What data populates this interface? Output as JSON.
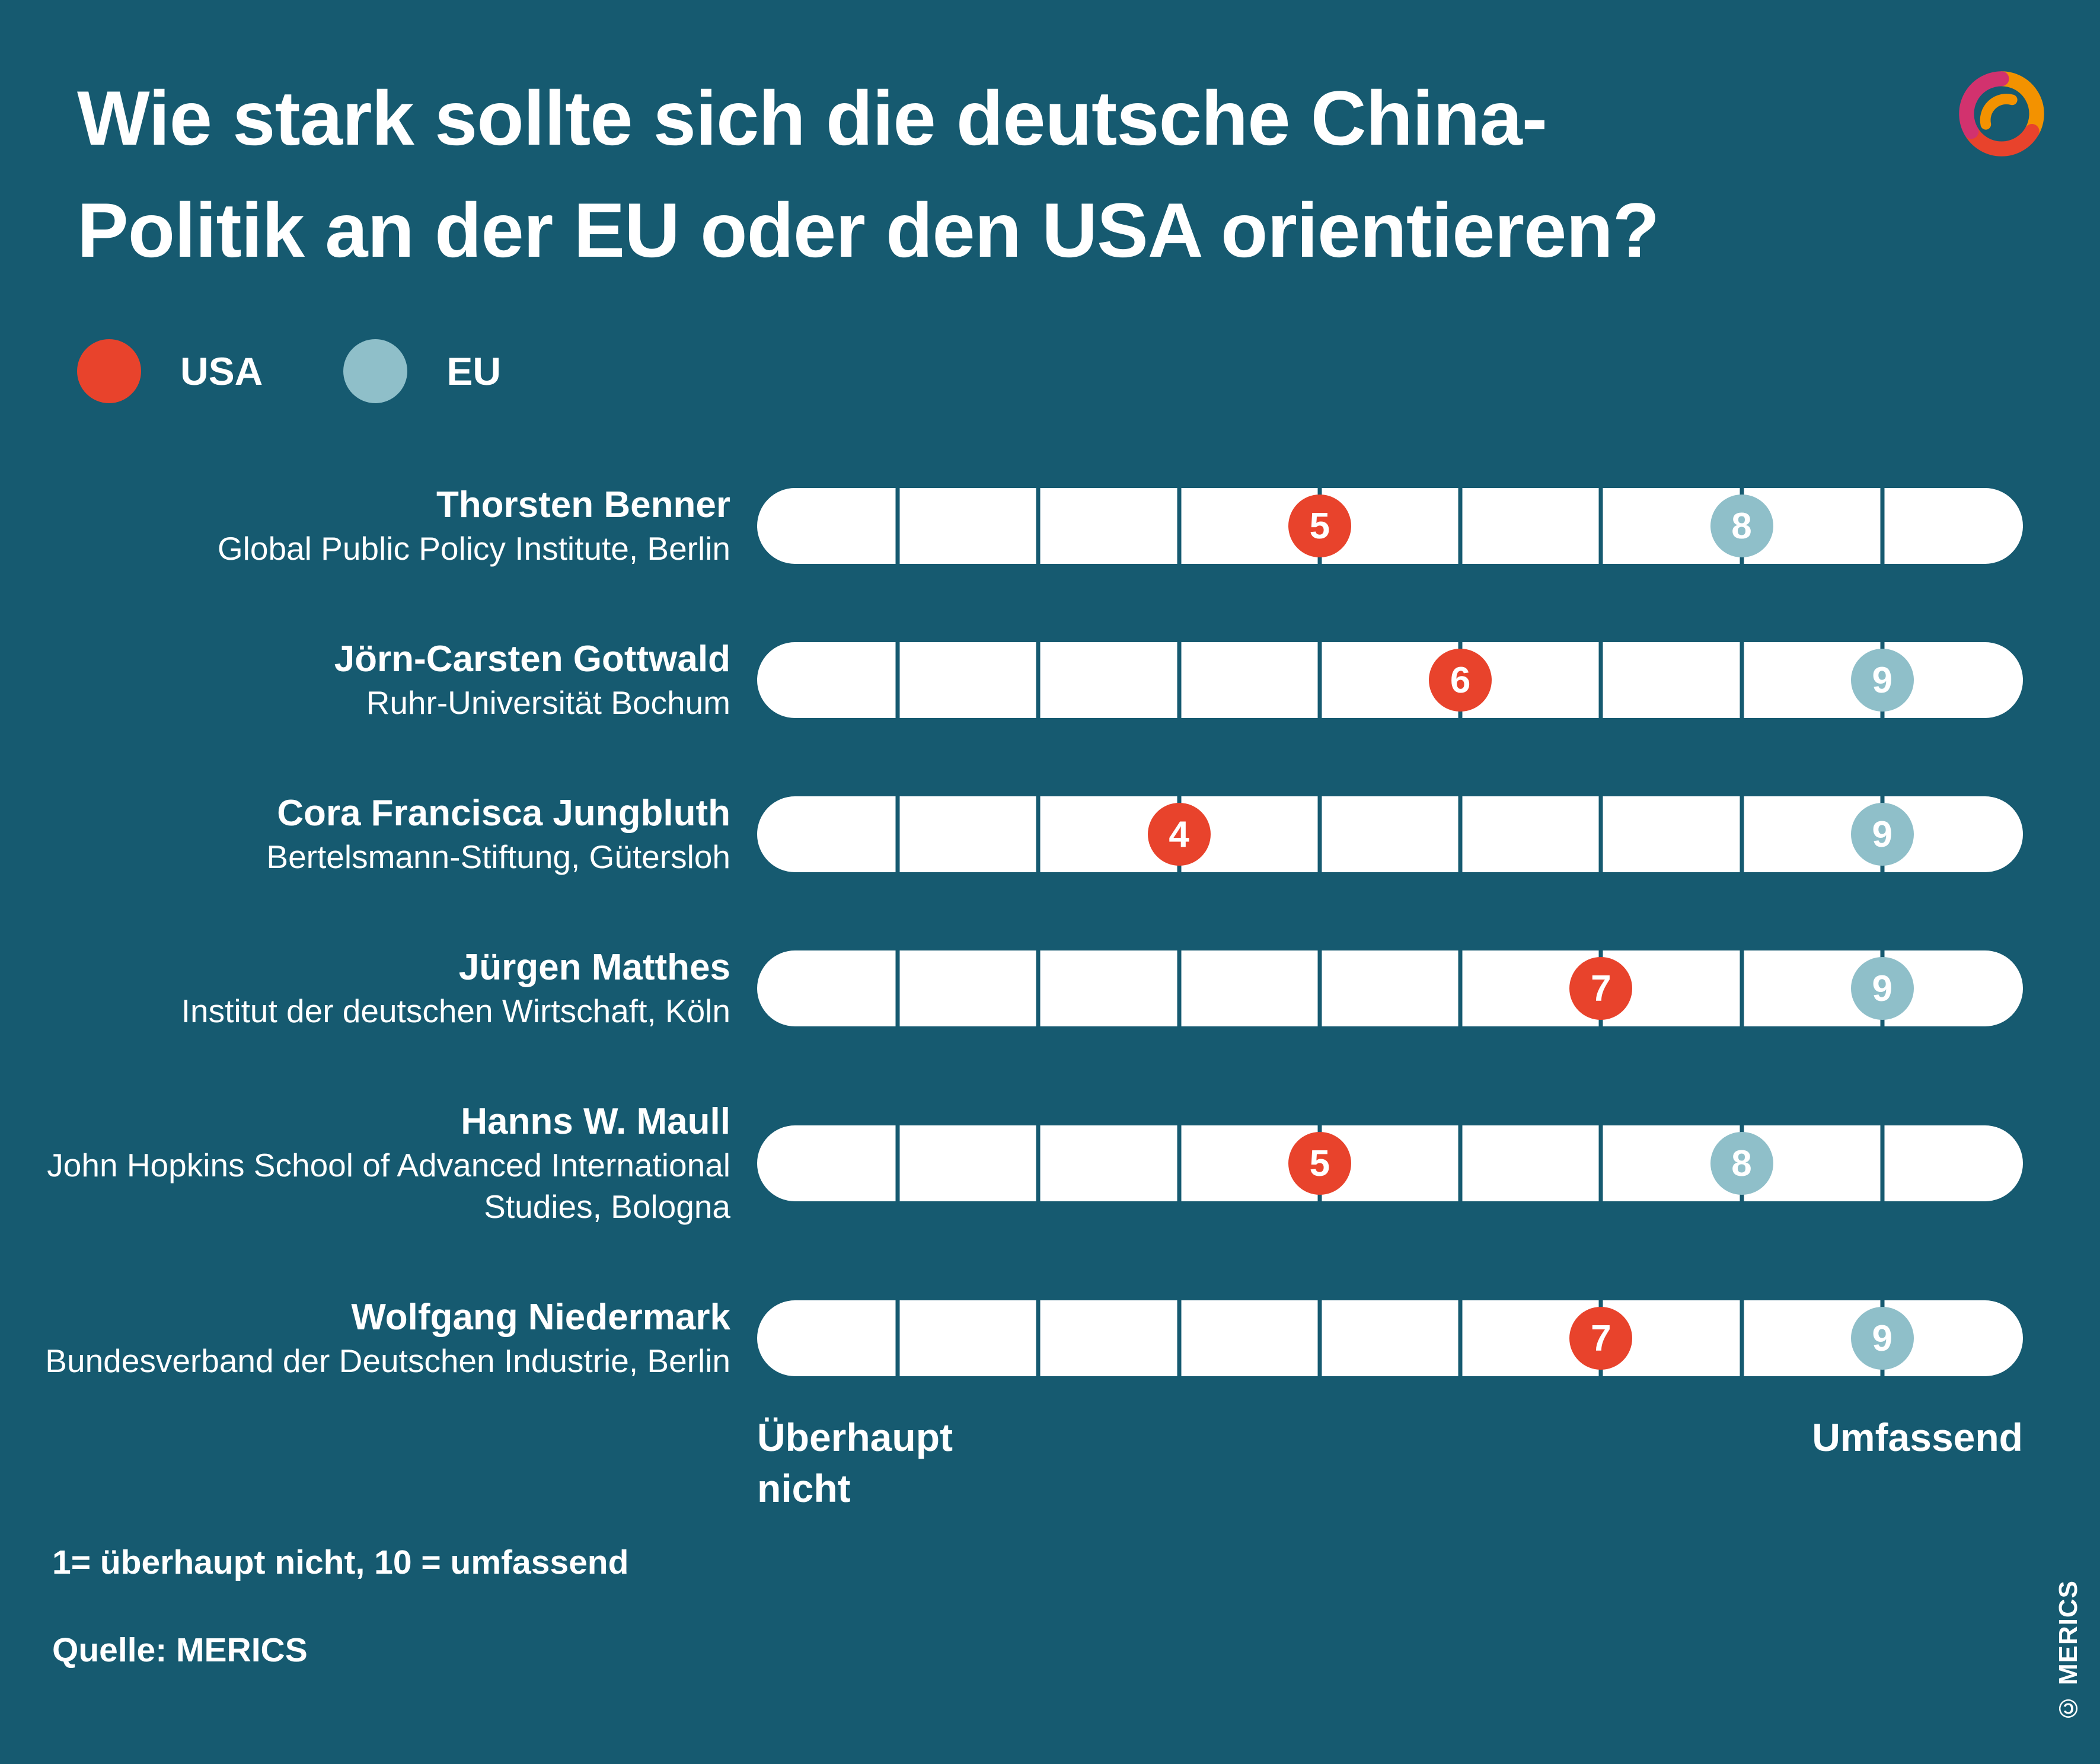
{
  "page": {
    "background_color": "#165A70",
    "title_line1": "Wie stark sollte sich die deutsche China-",
    "title_line2": "Politik an der EU oder den USA orientieren?",
    "footnote": "1= überhaupt nicht, 10 = umfassend",
    "source": "Quelle: MERICS",
    "copyright": "© MERICS"
  },
  "legend": {
    "usa_label": "USA",
    "eu_label": "EU",
    "usa_color": "#E8432C",
    "eu_color": "#8FBFC9"
  },
  "axis": {
    "left_label": "Überhaupt nicht",
    "right_label": "Umfassend"
  },
  "rows": [
    {
      "name": "Thorsten Benner",
      "affiliation": "Global Public Policy Institute, Berlin",
      "usa": 5,
      "eu": 8
    },
    {
      "name": "Jörn-Carsten Gottwald",
      "affiliation": "Ruhr-Universität Bochum",
      "usa": 6,
      "eu": 9
    },
    {
      "name": "Cora Francisca Jungbluth",
      "affiliation": "Bertelsmann-Stiftung, Gütersloh",
      "usa": 4,
      "eu": 9
    },
    {
      "name": "Jürgen Matthes",
      "affiliation": "Institut der deutschen Wirtschaft, Köln",
      "usa": 7,
      "eu": 9
    },
    {
      "name": "Hanns W. Maull",
      "affiliation": "John Hopkins School of Advanced International Studies, Bologna",
      "usa": 5,
      "eu": 8
    },
    {
      "name": "Wolfgang Niedermark",
      "affiliation": "Bundesverband der Deutschen Industrie, Berlin",
      "usa": 7,
      "eu": 9
    }
  ],
  "chart_data": {
    "type": "scatter",
    "title": "Wie stark sollte sich die deutsche China-Politik an der EU oder den USA orientieren?",
    "categories": [
      "Thorsten Benner",
      "Jörn-Carsten Gottwald",
      "Cora Francisca Jungbluth",
      "Jürgen Matthes",
      "Hanns W. Maull",
      "Wolfgang Niedermark"
    ],
    "category_sublabels": [
      "Global Public Policy Institute, Berlin",
      "Ruhr-Universität Bochum",
      "Bertelsmann-Stiftung, Gütersloh",
      "Institut der deutschen Wirtschaft, Köln",
      "John Hopkins School of Advanced International Studies, Bologna",
      "Bundesverband der Deutschen Industrie, Berlin"
    ],
    "series": [
      {
        "name": "USA",
        "color": "#E8432C",
        "values": [
          5,
          6,
          4,
          7,
          5,
          7
        ]
      },
      {
        "name": "EU",
        "color": "#8FBFC9",
        "values": [
          8,
          9,
          9,
          9,
          8,
          9
        ]
      }
    ],
    "xlim": [
      1,
      10
    ],
    "x_min_label": "Überhaupt nicht",
    "x_max_label": "Umfassend",
    "scale_note": "1= überhaupt nicht, 10 = umfassend",
    "legend_position": "top-left",
    "grid": false,
    "source": "Quelle: MERICS"
  }
}
